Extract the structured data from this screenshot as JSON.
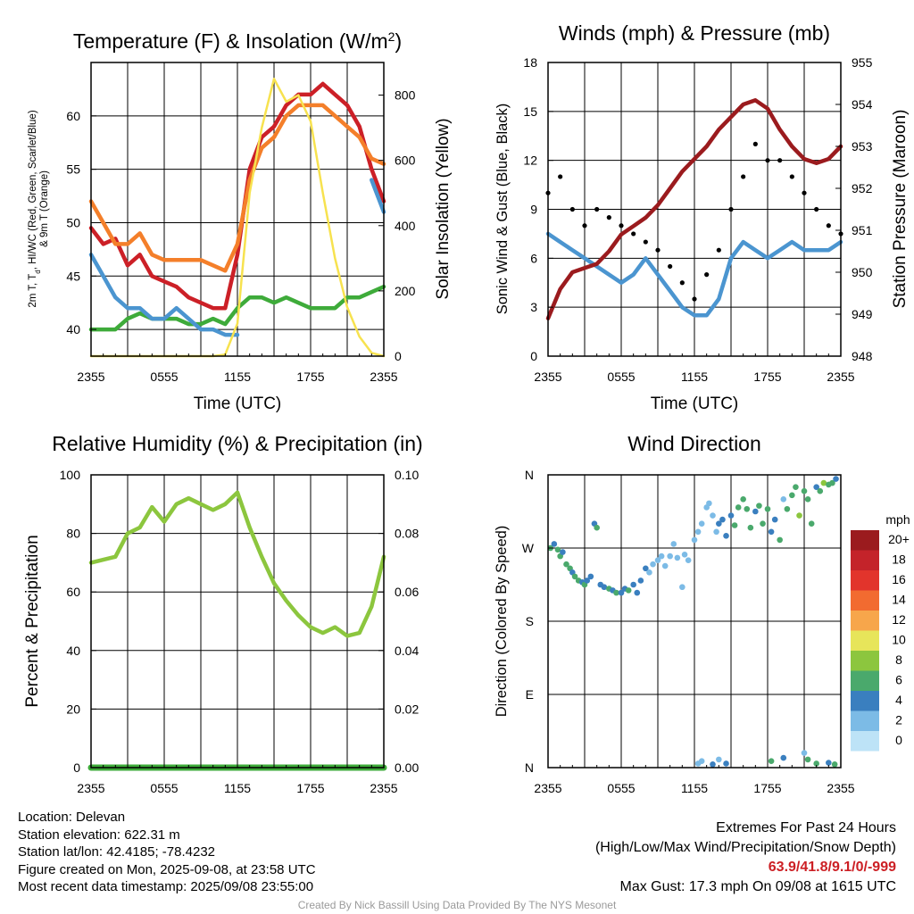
{
  "chart_data": [
    {
      "type": "line",
      "title": "Temperature (F) & Insolation (W/m²)",
      "xlabel": "Time (UTC)",
      "ylabel": "2m T, Td, HI/WC (Red, Green, Scarlet/Blue) & 9m T (Orange)",
      "y2label": "Solar Insolation (Yellow)",
      "x_ticks": [
        "2355",
        "0555",
        "1155",
        "1755",
        "2355"
      ],
      "ylim": [
        37.5,
        65
      ],
      "y_ticks": [
        40,
        45,
        50,
        55,
        60
      ],
      "y2lim": [
        0,
        900
      ],
      "y2_ticks": [
        0,
        200,
        400,
        600,
        800
      ],
      "grid": true,
      "series": [
        {
          "name": "2m T",
          "color": "#cc2027",
          "x": [
            0,
            1,
            2,
            3,
            4,
            5,
            6,
            7,
            8,
            9,
            10,
            11,
            12,
            13,
            14,
            15,
            16,
            17,
            18,
            19,
            20,
            21,
            22,
            23,
            24
          ],
          "values": [
            49.5,
            48,
            48.5,
            46,
            47,
            45,
            44.5,
            44,
            43,
            42.5,
            42,
            42,
            47,
            55,
            58,
            59,
            61,
            62,
            62,
            63,
            62,
            61,
            59,
            55,
            52
          ]
        },
        {
          "name": "9m T",
          "color": "#f47f2a",
          "x": [
            0,
            1,
            2,
            3,
            4,
            5,
            6,
            7,
            8,
            9,
            10,
            11,
            12,
            13,
            14,
            15,
            16,
            17,
            18,
            19,
            20,
            21,
            22,
            23,
            24
          ],
          "values": [
            52,
            50,
            48,
            48,
            49,
            47,
            46.5,
            46.5,
            46.5,
            46.5,
            46,
            45.5,
            48,
            54,
            57,
            58,
            60,
            61,
            61,
            61,
            60,
            59,
            58,
            56,
            55.5
          ]
        },
        {
          "name": "Td",
          "color": "#3eab3a",
          "x": [
            0,
            1,
            2,
            3,
            4,
            5,
            6,
            7,
            8,
            9,
            10,
            11,
            12,
            13,
            14,
            15,
            16,
            17,
            18,
            19,
            20,
            21,
            22,
            23,
            24
          ],
          "values": [
            40,
            40,
            40,
            41,
            41.5,
            41,
            41,
            41,
            40.5,
            40.5,
            41,
            40.5,
            42,
            43,
            43,
            42.5,
            43,
            42.5,
            42,
            42,
            42,
            43,
            43,
            43.5,
            44
          ]
        },
        {
          "name": "HI/WC",
          "color": "#4b95d0",
          "x": [
            0,
            1,
            2,
            3,
            4,
            5,
            6,
            7,
            8,
            9,
            10,
            11,
            12,
            13,
            14,
            15,
            16,
            17,
            18,
            19,
            20,
            21,
            22,
            23,
            24
          ],
          "values": [
            47,
            45,
            43,
            42,
            42,
            41,
            41,
            42,
            41,
            40,
            40,
            39.5,
            39.5,
            null,
            null,
            null,
            null,
            null,
            null,
            null,
            null,
            null,
            null,
            54,
            51
          ]
        },
        {
          "name": "Solar Insolation",
          "color": "#f7e24f",
          "axis": "y2",
          "x": [
            0,
            1,
            2,
            3,
            4,
            5,
            6,
            7,
            8,
            9,
            10,
            11,
            12,
            13,
            14,
            15,
            16,
            17,
            18,
            19,
            20,
            21,
            22,
            23,
            24
          ],
          "values": [
            0,
            0,
            0,
            0,
            0,
            0,
            0,
            0,
            0,
            0,
            0,
            5,
            100,
            500,
            700,
            850,
            780,
            800,
            720,
            500,
            300,
            150,
            60,
            10,
            0
          ]
        }
      ]
    },
    {
      "type": "line",
      "title": "Winds (mph) & Pressure (mb)",
      "xlabel": "Time (UTC)",
      "ylabel": "Sonic Wind & Gust (Blue, Black)",
      "y2label": "Station Pressure (Maroon)",
      "x_ticks": [
        "2355",
        "0555",
        "1155",
        "1755",
        "2355"
      ],
      "ylim": [
        0,
        18
      ],
      "y_ticks": [
        0,
        3,
        6,
        9,
        12,
        15,
        18
      ],
      "y2lim": [
        948,
        955
      ],
      "y2_ticks": [
        948,
        949,
        950,
        951,
        952,
        953,
        954,
        955
      ],
      "grid": true,
      "series": [
        {
          "name": "Sonic Wind",
          "color": "#4b95d0",
          "x": [
            0,
            1,
            2,
            3,
            4,
            5,
            6,
            7,
            8,
            9,
            10,
            11,
            12,
            13,
            14,
            15,
            16,
            17,
            18,
            19,
            20,
            21,
            22,
            23,
            24
          ],
          "values": [
            7.5,
            7,
            6.5,
            6,
            5.5,
            5,
            4.5,
            5,
            6,
            5,
            4,
            3,
            2.5,
            2.5,
            3.5,
            6,
            7,
            6.5,
            6,
            6.5,
            7,
            6.5,
            6.5,
            6.5,
            7
          ]
        },
        {
          "name": "Gust",
          "color": "#000000",
          "type": "scatter",
          "x": [
            0,
            1,
            2,
            3,
            4,
            5,
            6,
            7,
            8,
            9,
            10,
            11,
            12,
            13,
            14,
            15,
            16,
            17,
            18,
            19,
            20,
            21,
            22,
            23,
            24
          ],
          "values": [
            10,
            11,
            9,
            8,
            9,
            8.5,
            8,
            7.5,
            7,
            6.5,
            5.5,
            4.5,
            3.5,
            5,
            6.5,
            9,
            11,
            13,
            12,
            12,
            11,
            10,
            9,
            8,
            7.5
          ]
        },
        {
          "name": "Station Pressure",
          "color": "#9b1b1e",
          "axis": "y2",
          "x": [
            0,
            1,
            2,
            3,
            4,
            5,
            6,
            7,
            8,
            9,
            10,
            11,
            12,
            13,
            14,
            15,
            16,
            17,
            18,
            19,
            20,
            21,
            22,
            23,
            24
          ],
          "values": [
            948.9,
            949.6,
            950,
            950.1,
            950.2,
            950.5,
            950.9,
            951.1,
            951.3,
            951.6,
            952.0,
            952.4,
            952.7,
            953.0,
            953.4,
            953.7,
            954.0,
            954.1,
            953.9,
            953.4,
            953.0,
            952.7,
            952.6,
            952.7,
            953.0
          ]
        }
      ]
    },
    {
      "type": "line",
      "title": "Relative Humidity (%) & Precipitation (in)",
      "ylabel": "Percent & Precipitation",
      "x_ticks": [
        "2355",
        "0555",
        "1155",
        "1755",
        "2355"
      ],
      "ylim": [
        0,
        100
      ],
      "y_ticks": [
        0,
        20,
        40,
        60,
        80,
        100
      ],
      "y2lim": [
        0,
        0.1
      ],
      "y2_ticks": [
        "0.00",
        "0.02",
        "0.04",
        "0.06",
        "0.08",
        "0.10"
      ],
      "grid": true,
      "series": [
        {
          "name": "Relative Humidity",
          "color": "#8cc63e",
          "x": [
            0,
            1,
            2,
            3,
            4,
            5,
            6,
            7,
            8,
            9,
            10,
            11,
            12,
            13,
            14,
            15,
            16,
            17,
            18,
            19,
            20,
            21,
            22,
            23,
            24
          ],
          "values": [
            70,
            71,
            72,
            80,
            82,
            89,
            84,
            90,
            92,
            90,
            88,
            90,
            94,
            82,
            72,
            63,
            57,
            52,
            48,
            46,
            48,
            45,
            46,
            55,
            72
          ]
        },
        {
          "name": "Precipitation",
          "color": "#3eab3a",
          "axis": "y2",
          "x": [
            0,
            24
          ],
          "values": [
            0,
            0
          ]
        }
      ]
    },
    {
      "type": "scatter",
      "title": "Wind Direction",
      "ylabel": "Direction (Colored By Speed)",
      "x_ticks": [
        "2355",
        "0555",
        "1155",
        "1755",
        "2355"
      ],
      "y_ticks": [
        "N",
        "E",
        "S",
        "W",
        "N"
      ],
      "ylim": [
        0,
        360
      ],
      "grid": true,
      "colorbar": {
        "unit": "mph",
        "labels": [
          "20+",
          "18",
          "16",
          "14",
          "12",
          "10",
          "8",
          "6",
          "4",
          "2",
          "0"
        ],
        "colors": [
          "#9b1b1e",
          "#c4232a",
          "#e2342c",
          "#f26b30",
          "#f7a64b",
          "#e7e55a",
          "#8cc63e",
          "#4aa96c",
          "#3a7fbf",
          "#7cbbe6",
          "#bde3f7"
        ]
      },
      "points": [
        [
          0.2,
          270,
          6
        ],
        [
          0.5,
          275,
          5
        ],
        [
          0.8,
          268,
          7
        ],
        [
          1.0,
          260,
          6
        ],
        [
          1.2,
          265,
          5
        ],
        [
          1.5,
          250,
          6
        ],
        [
          1.8,
          245,
          7
        ],
        [
          2.0,
          240,
          5
        ],
        [
          2.2,
          235,
          6
        ],
        [
          2.5,
          230,
          6
        ],
        [
          2.8,
          228,
          5
        ],
        [
          3.0,
          225,
          6
        ],
        [
          3.2,
          230,
          5
        ],
        [
          3.5,
          235,
          4
        ],
        [
          3.8,
          300,
          5
        ],
        [
          4.0,
          295,
          6
        ],
        [
          4.3,
          225,
          5
        ],
        [
          4.6,
          222,
          4
        ],
        [
          5.0,
          220,
          6
        ],
        [
          5.3,
          218,
          5
        ],
        [
          5.6,
          215,
          6
        ],
        [
          6.0,
          215,
          5
        ],
        [
          6.3,
          220,
          4
        ],
        [
          6.6,
          218,
          6
        ],
        [
          7.0,
          225,
          4
        ],
        [
          7.3,
          215,
          5
        ],
        [
          7.6,
          230,
          4
        ],
        [
          8.0,
          245,
          4
        ],
        [
          8.3,
          240,
          3
        ],
        [
          8.6,
          250,
          3
        ],
        [
          9.0,
          255,
          2
        ],
        [
          9.3,
          260,
          2
        ],
        [
          9.6,
          248,
          2
        ],
        [
          10.0,
          260,
          2
        ],
        [
          10.3,
          275,
          2
        ],
        [
          10.6,
          258,
          3
        ],
        [
          11.0,
          222,
          3
        ],
        [
          11.2,
          262,
          3
        ],
        [
          11.5,
          255,
          2
        ],
        [
          12.0,
          280,
          2
        ],
        [
          12.3,
          290,
          2
        ],
        [
          12.6,
          300,
          3
        ],
        [
          13.0,
          320,
          3
        ],
        [
          13.2,
          325,
          2
        ],
        [
          13.5,
          310,
          3
        ],
        [
          13.8,
          290,
          3
        ],
        [
          14.0,
          300,
          4
        ],
        [
          14.3,
          305,
          5
        ],
        [
          14.6,
          285,
          4
        ],
        [
          15.0,
          310,
          5
        ],
        [
          15.3,
          298,
          6
        ],
        [
          15.6,
          320,
          6
        ],
        [
          16.0,
          330,
          6
        ],
        [
          16.3,
          318,
          7
        ],
        [
          16.6,
          295,
          6
        ],
        [
          17.0,
          315,
          5
        ],
        [
          17.3,
          322,
          6
        ],
        [
          17.6,
          300,
          7
        ],
        [
          18.0,
          318,
          6
        ],
        [
          18.3,
          290,
          4
        ],
        [
          18.6,
          305,
          5
        ],
        [
          19.0,
          280,
          6
        ],
        [
          19.3,
          330,
          3
        ],
        [
          19.6,
          318,
          7
        ],
        [
          20.0,
          335,
          6
        ],
        [
          20.3,
          345,
          7
        ],
        [
          20.6,
          310,
          8
        ],
        [
          21.0,
          340,
          6
        ],
        [
          21.3,
          330,
          7
        ],
        [
          21.6,
          300,
          6
        ],
        [
          22.0,
          345,
          4
        ],
        [
          22.3,
          340,
          6
        ],
        [
          22.6,
          350,
          8
        ],
        [
          23.0,
          348,
          7
        ],
        [
          23.3,
          350,
          6
        ],
        [
          23.6,
          355,
          5
        ],
        [
          12.3,
          5,
          2
        ],
        [
          12.6,
          8,
          2
        ],
        [
          13.5,
          4,
          4
        ],
        [
          14.0,
          10,
          3
        ],
        [
          14.6,
          5,
          4
        ],
        [
          18.3,
          8,
          6
        ],
        [
          19.3,
          12,
          4
        ],
        [
          21.0,
          18,
          3
        ],
        [
          21.3,
          10,
          6
        ],
        [
          22.0,
          5,
          6
        ],
        [
          23.0,
          6,
          5
        ],
        [
          23.5,
          4,
          6
        ]
      ]
    }
  ],
  "metadata": {
    "lines": [
      "Location: Delevan",
      "Station elevation: 622.31 m",
      "Station lat/lon: 42.4185; -78.4232",
      "Figure created on Mon, 2025-09-08, at 23:58 UTC",
      "Most recent data timestamp: 2025/09/08 23:55:00"
    ]
  },
  "extremes": {
    "title": "Extremes For Past 24 Hours",
    "subtitle": "(High/Low/Max Wind/Precipitation/Snow Depth)",
    "values": "63.9/41.8/9.1/0/-999",
    "gust": "Max Gust: 17.3 mph On 09/08 at 1615 UTC"
  },
  "credit": "Created By Nick Bassill Using Data Provided By The NYS Mesonet"
}
